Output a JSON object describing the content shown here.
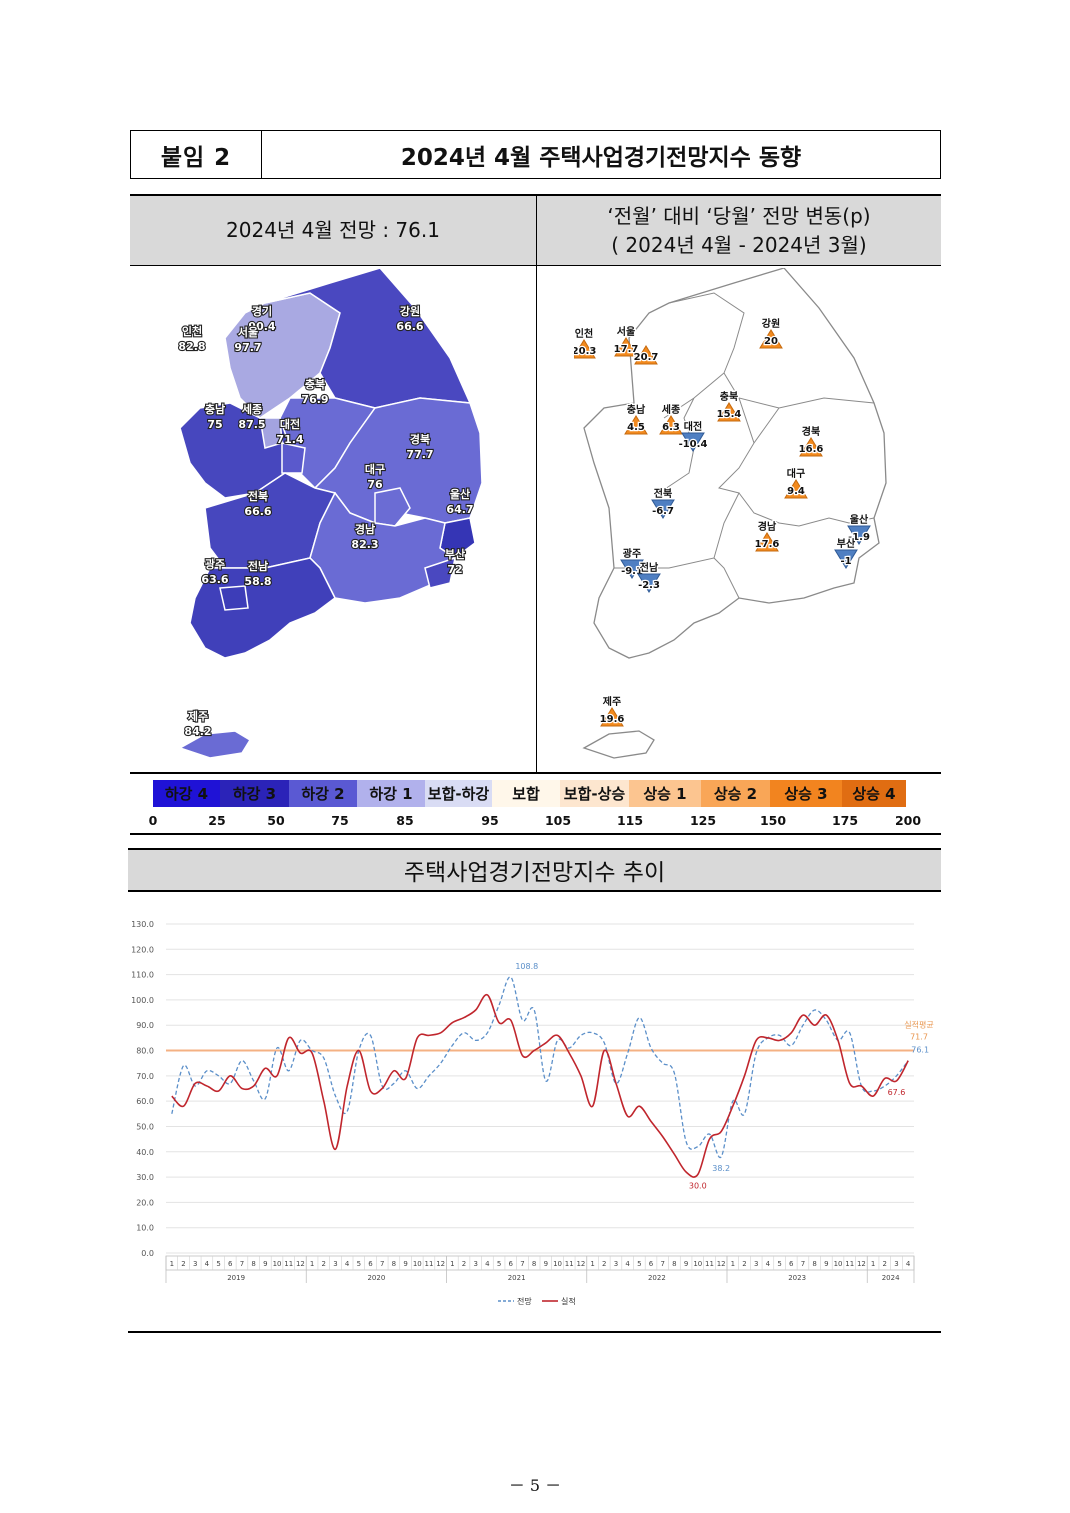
{
  "header": {
    "tag": "붙임 2",
    "title": "2024년 4월 주택사업경기전망지수 동향"
  },
  "left_panel": {
    "title": "2024년 4월 전망 : 76.1"
  },
  "right_panel": {
    "title_line1": "‘전월’ 대비 ‘당월’ 전망 변동(p)",
    "title_line2": "( 2024년 4월 -   2024년 3월)"
  },
  "left_regions": [
    {
      "name": "인천",
      "value": "82.8"
    },
    {
      "name": "경기",
      "value": "90.4"
    },
    {
      "name": "서울",
      "value": "97.7"
    },
    {
      "name": "강원",
      "value": "66.6"
    },
    {
      "name": "충북",
      "value": "76.9"
    },
    {
      "name": "충남",
      "value": "75"
    },
    {
      "name": "세종",
      "value": "87.5"
    },
    {
      "name": "대전",
      "value": "71.4"
    },
    {
      "name": "경북",
      "value": "77.7"
    },
    {
      "name": "대구",
      "value": "76"
    },
    {
      "name": "울산",
      "value": "64.7"
    },
    {
      "name": "전북",
      "value": "66.6"
    },
    {
      "name": "경남",
      "value": "82.3"
    },
    {
      "name": "부산",
      "value": "72"
    },
    {
      "name": "광주",
      "value": "63.6"
    },
    {
      "name": "전남",
      "value": "58.8"
    },
    {
      "name": "제주",
      "value": "84.2"
    }
  ],
  "right_regions": [
    {
      "name": "인천",
      "value": "20.3",
      "dir": "up"
    },
    {
      "name": "서울",
      "value": "17.7",
      "dir": "up"
    },
    {
      "name": "",
      "value": "20.7",
      "dir": "up"
    },
    {
      "name": "강원",
      "value": "20",
      "dir": "up"
    },
    {
      "name": "충북",
      "value": "15.4",
      "dir": "up"
    },
    {
      "name": "충남",
      "value": "4.5",
      "dir": "up"
    },
    {
      "name": "세종",
      "value": "6.3",
      "dir": "up"
    },
    {
      "name": "대전",
      "value": "-10.4",
      "dir": "down"
    },
    {
      "name": "경북",
      "value": "16.6",
      "dir": "up"
    },
    {
      "name": "대구",
      "value": "9.4",
      "dir": "up"
    },
    {
      "name": "전북",
      "value": "-6.7",
      "dir": "down"
    },
    {
      "name": "울산",
      "value": "-1.9",
      "dir": "down"
    },
    {
      "name": "경남",
      "value": "17.6",
      "dir": "up"
    },
    {
      "name": "부산",
      "value": "-1",
      "dir": "down"
    },
    {
      "name": "광주",
      "value": "-9.1",
      "dir": "down"
    },
    {
      "name": "전남",
      "value": "-2.3",
      "dir": "down"
    },
    {
      "name": "제주",
      "value": "19.6",
      "dir": "up"
    }
  ],
  "legend": {
    "segments": [
      {
        "label": "하강 4",
        "color": "#1f12d6"
      },
      {
        "label": "하강 3",
        "color": "#2b23b8"
      },
      {
        "label": "하강 2",
        "color": "#5a59d3"
      },
      {
        "label": "하강 1",
        "color": "#b1b1ec"
      },
      {
        "label": "보합-하강",
        "color": "#d9dcf4"
      },
      {
        "label": "보합",
        "color": "#fff7ea"
      },
      {
        "label": "보합-상승",
        "color": "#fde6cf"
      },
      {
        "label": "상승 1",
        "color": "#fcc590"
      },
      {
        "label": "상승 2",
        "color": "#f9a657"
      },
      {
        "label": "상승 3",
        "color": "#f2841f"
      },
      {
        "label": "상승 4",
        "color": "#e06d12"
      }
    ],
    "ticks": [
      "0",
      "25",
      "50",
      "75",
      "85",
      "95",
      "105",
      "115",
      "125",
      "150",
      "175",
      "200"
    ]
  },
  "trend_title": "주택사업경기전망지수 추이",
  "chart_data": {
    "type": "line",
    "title": "",
    "ylim": [
      0,
      130
    ],
    "y_ticks": [
      "0.0",
      "10.0",
      "20.0",
      "30.0",
      "40.0",
      "50.0",
      "60.0",
      "70.0",
      "80.0",
      "90.0",
      "100.0",
      "110.0",
      "120.0",
      "130.0"
    ],
    "years": [
      "2019",
      "2020",
      "2021",
      "2022",
      "2023",
      "2024"
    ],
    "months_per_year": [
      12,
      12,
      12,
      12,
      12,
      4
    ],
    "reference": {
      "label": "실적평균",
      "value": 71.7,
      "value_label": "71.7",
      "line_value": 80
    },
    "series": [
      {
        "name": "전망",
        "color": "#5b8fc9",
        "style": "dashed",
        "values": [
          55,
          74,
          66,
          72,
          70,
          67,
          76,
          68,
          61,
          81,
          72,
          84,
          80,
          77,
          62,
          56,
          80,
          86,
          66,
          67,
          72,
          65,
          70,
          75,
          82,
          87,
          84,
          87,
          98,
          109,
          92,
          96,
          68,
          84,
          81,
          86,
          87,
          83,
          67,
          79,
          93,
          81,
          75,
          71,
          44,
          42,
          47,
          38,
          60,
          55,
          79,
          85,
          86,
          82,
          90,
          96,
          92,
          84,
          87,
          66,
          64,
          66,
          70,
          76
        ],
        "labels": [
          {
            "i": 29,
            "text": "108.8"
          },
          {
            "i": 47,
            "text": "38.2"
          },
          {
            "i": 63,
            "text": "76.1"
          }
        ]
      },
      {
        "name": "실적",
        "color": "#c0262d",
        "style": "solid",
        "values": [
          62,
          58,
          67,
          66,
          64,
          70,
          65,
          66,
          73,
          70,
          85,
          79,
          79,
          60,
          41,
          66,
          80,
          64,
          65,
          72,
          69,
          85,
          86,
          87,
          91,
          93,
          96,
          102,
          91,
          92,
          78,
          80,
          83,
          86,
          79,
          70,
          58,
          80,
          67,
          54,
          58,
          52,
          46,
          39,
          32,
          31,
          45,
          48,
          58,
          70,
          84,
          85,
          84,
          87,
          94,
          90,
          94,
          84,
          67,
          66,
          62,
          69,
          68,
          76
        ],
        "labels": [
          {
            "i": 45,
            "text": "30.0"
          },
          {
            "i": 62,
            "text": "67.6"
          }
        ]
      }
    ]
  },
  "page_number": "－ 5 －"
}
